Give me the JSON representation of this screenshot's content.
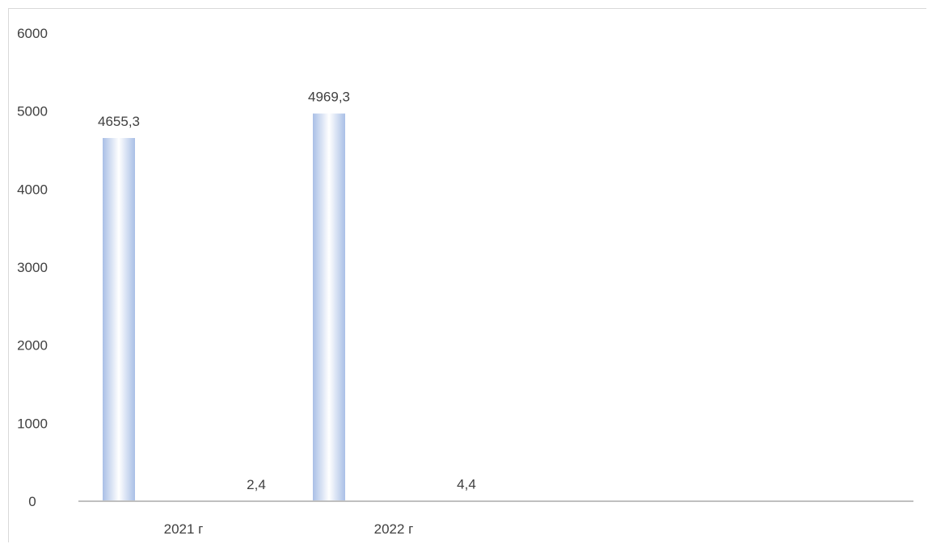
{
  "chart_data": {
    "type": "bar",
    "title": "",
    "xlabel": "",
    "ylabel": "",
    "categories": [
      "2021 г",
      "2022 г"
    ],
    "series": [
      {
        "values": [
          4655.3,
          4969.3
        ],
        "labels": [
          "4655,3",
          "4969,3"
        ]
      },
      {
        "values": [
          2.4,
          4.4
        ],
        "labels": [
          "2,4",
          "4,4"
        ]
      }
    ],
    "ylim": [
      0,
      6000
    ],
    "yticks": [
      0,
      1000,
      2000,
      3000,
      4000,
      5000,
      6000
    ],
    "grid": false,
    "legend": "none",
    "colors": {
      "bar_edge": "#a9bfe6",
      "bar_center": "#ffffff",
      "axis": "#bfbfbf",
      "text": "#404040"
    }
  }
}
